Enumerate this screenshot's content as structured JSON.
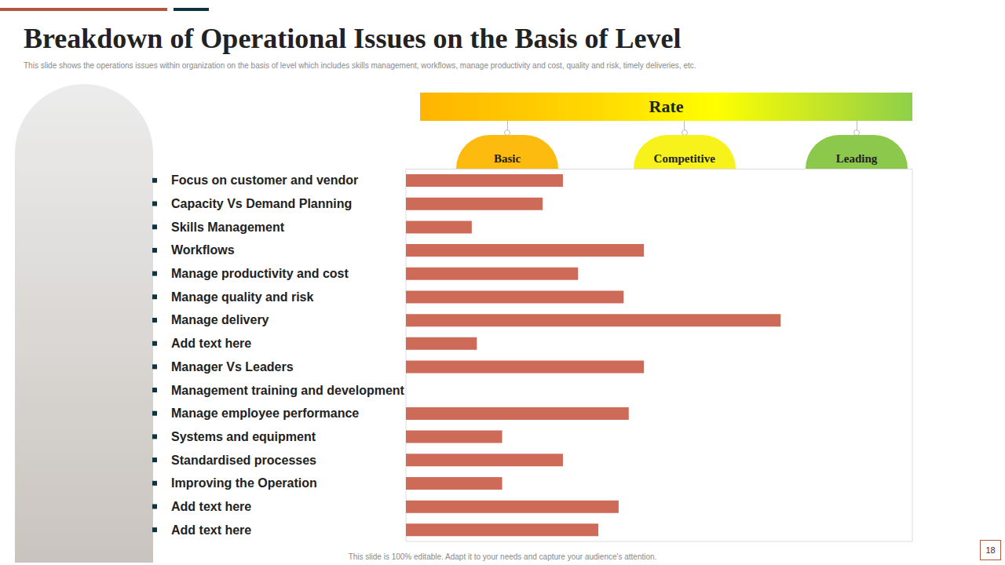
{
  "chart_data": {
    "type": "bar",
    "title": "Breakdown of Operational Issues on the Basis of Level",
    "subtitle": "This slide shows the operations issues within organization on the basis of level which includes skills management,  workflows, manage productivity and cost, quality and risk, timely deliveries, etc.",
    "orientation": "horizontal",
    "categories": [
      "Focus on customer and vendor",
      "Capacity Vs Demand Planning",
      "Skills Management",
      "Workflows",
      "Manage productivity and cost",
      "Manage quality and risk",
      "Manage delivery",
      "Add text here",
      "Manager Vs Leaders",
      "Management training and development",
      "Manage employee performance",
      "Systems and equipment",
      "Standardised processes",
      "Improving the Operation",
      "Add text here",
      "Add text here"
    ],
    "values": [
      3.1,
      2.7,
      1.3,
      4.7,
      3.4,
      4.3,
      7.4,
      1.4,
      4.7,
      null,
      4.4,
      1.9,
      3.1,
      1.9,
      4.2,
      3.8
    ],
    "color": "#cd6b58",
    "xlim": [
      0,
      10
    ],
    "xticks": [
      0,
      1,
      2,
      3,
      4,
      5,
      6,
      7,
      8,
      9,
      10
    ],
    "grid": true,
    "tick_labels": "y",
    "rate_label": "Rate",
    "levels": [
      {
        "label": "Basic",
        "value": 2,
        "color": "#fdbb10"
      },
      {
        "label": "Competitive",
        "value": 5.5,
        "color": "#f7f21c"
      },
      {
        "label": "Leading",
        "value": 8.9,
        "color": "#8cc84b"
      }
    ]
  },
  "footer": "This slide is 100% editable. Adapt it to your needs and capture your audience's attention.",
  "page_number": "18"
}
